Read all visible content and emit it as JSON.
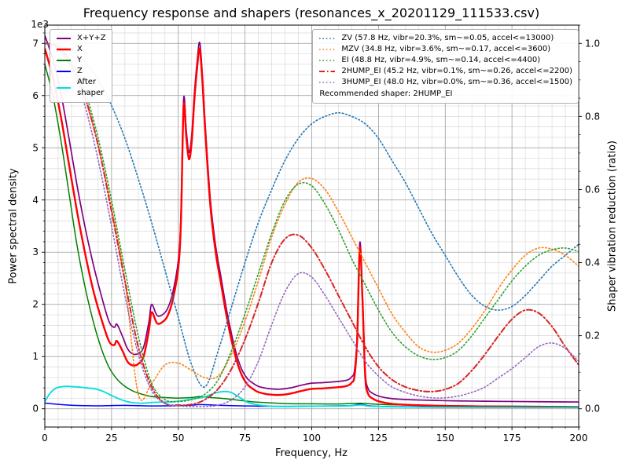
{
  "chart_data": {
    "type": "line",
    "title": "Frequency response and shapers (resonances_x_20201129_111533.csv)",
    "xlabel": "Frequency, Hz",
    "ylabel": "Power spectral density",
    "y2label": "Shaper vibration reduction (ratio)",
    "y_offset_text": "1e3",
    "grid": "both",
    "xlim": [
      0,
      200
    ],
    "ylim": [
      0,
      7000
    ],
    "y2lim": [
      0,
      1
    ],
    "x_ticks": [
      "0",
      "25",
      "50",
      "75",
      "100",
      "125",
      "150",
      "175",
      "200"
    ],
    "y_ticks": [
      "0",
      "1",
      "2",
      "3",
      "4",
      "5",
      "6",
      "7"
    ],
    "y2_ticks": [
      "0.0",
      "0.2",
      "0.4",
      "0.6",
      "0.8",
      "1.0"
    ],
    "grid_major_color": "#9b9b9b",
    "grid_minor_color": "#d9d9d9",
    "legend_left": {
      "items": [
        {
          "label": "X+Y+Z",
          "color": "#800080",
          "style": "solid",
          "width": 2
        },
        {
          "label": "X",
          "color": "#ff0000",
          "style": "solid",
          "width": 2.4
        },
        {
          "label": "Y",
          "color": "#008000",
          "style": "solid",
          "width": 2
        },
        {
          "label": "Z",
          "color": "#0000ff",
          "style": "solid",
          "width": 2
        },
        {
          "label": "After\nshaper",
          "color": "#00dede",
          "style": "solid",
          "width": 2
        }
      ]
    },
    "legend_right": {
      "items": [
        {
          "label": "ZV (57.8 Hz, vibr=20.3%, sm~=0.05, accel<=13000)",
          "color": "#1f77b4",
          "style": "dotted",
          "width": 1.6
        },
        {
          "label": "MZV (34.8 Hz, vibr=3.6%, sm~=0.17, accel<=3600)",
          "color": "#ff7f0e",
          "style": "dotted",
          "width": 1.6
        },
        {
          "label": "EI (48.8 Hz, vibr=4.9%, sm~=0.14, accel<=4400)",
          "color": "#2ca02c",
          "style": "dotted",
          "width": 1.6
        },
        {
          "label": "2HUMP_EI (45.2 Hz, vibr=0.1%, sm~=0.26, accel<=2200)",
          "color": "#d62728",
          "style": "dashdot",
          "width": 2
        },
        {
          "label": "3HUMP_EI (48.0 Hz, vibr=0.0%, sm~=0.36, accel<=1500)",
          "color": "#9467bd",
          "style": "dotted",
          "width": 1.6
        }
      ],
      "footer": "Recommended shaper: 2HUMP_EI"
    },
    "series": [
      {
        "name": "psd-xyz",
        "axis": "left",
        "color": "#800080",
        "style": "solid",
        "width": 1.7,
        "x": [
          0,
          3,
          6,
          9,
          12,
          15,
          18,
          21,
          24,
          26,
          27,
          29,
          31,
          33,
          35,
          37,
          39,
          40,
          42,
          44,
          46,
          48,
          50,
          51,
          52,
          53,
          54,
          55,
          56,
          57,
          58,
          59,
          60,
          62,
          64,
          66,
          68,
          70,
          72,
          74,
          76,
          78,
          80,
          84,
          88,
          92,
          96,
          100,
          104,
          108,
          112,
          114,
          115,
          116,
          117,
          118,
          119,
          120,
          121,
          123,
          126,
          130,
          135,
          140,
          150,
          160,
          170,
          180,
          190,
          200
        ],
        "y": [
          7150,
          6700,
          6050,
          5200,
          4300,
          3500,
          2800,
          2200,
          1680,
          1560,
          1620,
          1400,
          1150,
          1050,
          1060,
          1180,
          1670,
          2000,
          1790,
          1800,
          1920,
          2240,
          2840,
          3730,
          5930,
          5330,
          4910,
          5230,
          6020,
          6620,
          7020,
          6420,
          5520,
          4020,
          3120,
          2520,
          1920,
          1420,
          1010,
          730,
          570,
          490,
          430,
          385,
          375,
          400,
          450,
          490,
          500,
          515,
          535,
          565,
          615,
          730,
          1400,
          3180,
          2200,
          750,
          400,
          290,
          230,
          195,
          178,
          168,
          155,
          147,
          142,
          138,
          133,
          130
        ]
      },
      {
        "name": "psd-y",
        "axis": "left",
        "color": "#008000",
        "style": "solid",
        "width": 1.5,
        "x": [
          0,
          3,
          6,
          9,
          12,
          15,
          18,
          21,
          24,
          27,
          30,
          33,
          36,
          40,
          45,
          50,
          55,
          58,
          62,
          66,
          70,
          75,
          80,
          90,
          100,
          110,
          118,
          125,
          135,
          150,
          165,
          180,
          200
        ],
        "y": [
          6600,
          6000,
          5150,
          4150,
          3150,
          2350,
          1700,
          1180,
          800,
          570,
          430,
          340,
          285,
          235,
          215,
          205,
          215,
          235,
          215,
          200,
          180,
          150,
          125,
          100,
          95,
          92,
          105,
          85,
          72,
          58,
          52,
          48,
          42
        ]
      },
      {
        "name": "psd-z",
        "axis": "left",
        "color": "#0000ff",
        "style": "solid",
        "width": 1.5,
        "x": [
          0,
          5,
          10,
          15,
          20,
          25,
          30,
          35,
          40,
          45,
          50,
          55,
          58,
          62,
          66,
          70,
          75,
          80,
          90,
          100,
          110,
          115,
          118,
          121,
          125,
          130,
          140,
          150,
          160,
          170,
          180,
          190,
          200
        ],
        "y": [
          110,
          85,
          68,
          60,
          56,
          62,
          66,
          60,
          55,
          56,
          60,
          70,
          80,
          74,
          66,
          60,
          55,
          50,
          46,
          50,
          56,
          62,
          88,
          60,
          46,
          41,
          38,
          35,
          33,
          32,
          30,
          28,
          27
        ]
      },
      {
        "name": "psd-x",
        "axis": "left",
        "color": "#ff0000",
        "style": "solid",
        "width": 2.4,
        "x": [
          0,
          3,
          6,
          9,
          12,
          15,
          18,
          21,
          24,
          26,
          27,
          29,
          31,
          33,
          35,
          37,
          39,
          40,
          42,
          44,
          46,
          48,
          50,
          51,
          52,
          53,
          54,
          55,
          56,
          57,
          58,
          59,
          60,
          62,
          64,
          66,
          68,
          70,
          72,
          74,
          76,
          78,
          80,
          84,
          88,
          92,
          96,
          100,
          104,
          108,
          112,
          114,
          115,
          116,
          117,
          118,
          119,
          120,
          121,
          123,
          126,
          130,
          135,
          140,
          150,
          160,
          170,
          180,
          190,
          200
        ],
        "y": [
          6900,
          6350,
          5600,
          4700,
          3800,
          3000,
          2300,
          1750,
          1300,
          1220,
          1300,
          1120,
          900,
          830,
          860,
          1000,
          1500,
          1850,
          1640,
          1660,
          1780,
          2100,
          2700,
          3600,
          5800,
          5200,
          4780,
          5100,
          5900,
          6500,
          6900,
          6300,
          5400,
          3900,
          3000,
          2400,
          1800,
          1300,
          900,
          620,
          460,
          380,
          320,
          275,
          265,
          290,
          340,
          380,
          390,
          405,
          425,
          455,
          505,
          620,
          1300,
          3080,
          2100,
          650,
          300,
          190,
          130,
          95,
          78,
          68,
          55,
          47,
          42,
          38,
          33,
          30
        ]
      },
      {
        "name": "psd-after-shaper",
        "axis": "left",
        "color": "#00dede",
        "style": "solid",
        "width": 1.8,
        "x": [
          0,
          2,
          4,
          6,
          8,
          10,
          13,
          16,
          19,
          22,
          25,
          28,
          31,
          34,
          37,
          40,
          43,
          46,
          49,
          52,
          55,
          58,
          60,
          62,
          64,
          66,
          68,
          70,
          72,
          74,
          76,
          79,
          82,
          86,
          90,
          95,
          100,
          105,
          110,
          114,
          117,
          119,
          121,
          124,
          128,
          133,
          140,
          150,
          160,
          170,
          180,
          190,
          200
        ],
        "y": [
          140,
          300,
          390,
          420,
          430,
          425,
          415,
          398,
          380,
          330,
          255,
          185,
          135,
          110,
          108,
          120,
          126,
          130,
          138,
          160,
          188,
          208,
          230,
          270,
          305,
          325,
          330,
          308,
          248,
          185,
          122,
          82,
          60,
          46,
          42,
          45,
          50,
          52,
          52,
          57,
          70,
          72,
          52,
          45,
          40,
          36,
          32,
          28,
          27,
          26,
          25,
          24,
          33
        ]
      },
      {
        "name": "shaper-zv",
        "axis": "right",
        "color": "#1f77b4",
        "style": "dotted",
        "width": 1.6,
        "x": [
          0,
          5,
          10,
          15,
          20,
          25,
          30,
          35,
          40,
          45,
          50,
          55,
          60,
          65,
          70,
          75,
          80,
          85,
          90,
          95,
          100,
          105,
          110,
          115,
          120,
          125,
          130,
          135,
          140,
          145,
          150,
          155,
          160,
          165,
          170,
          175,
          180,
          185,
          190,
          195,
          200
        ],
        "y": [
          1.0,
          0.995,
          0.98,
          0.95,
          0.9,
          0.83,
          0.74,
          0.63,
          0.51,
          0.38,
          0.25,
          0.12,
          0.06,
          0.16,
          0.28,
          0.4,
          0.51,
          0.6,
          0.68,
          0.74,
          0.78,
          0.8,
          0.81,
          0.8,
          0.78,
          0.74,
          0.68,
          0.62,
          0.55,
          0.48,
          0.42,
          0.36,
          0.31,
          0.28,
          0.27,
          0.28,
          0.31,
          0.35,
          0.39,
          0.42,
          0.45
        ]
      },
      {
        "name": "shaper-mzv",
        "axis": "right",
        "color": "#ff7f0e",
        "style": "dotted",
        "width": 1.6,
        "x": [
          0,
          5,
          10,
          15,
          20,
          25,
          30,
          35,
          40,
          45,
          50,
          55,
          60,
          65,
          70,
          75,
          80,
          85,
          90,
          95,
          100,
          105,
          110,
          115,
          120,
          125,
          130,
          135,
          140,
          145,
          150,
          155,
          160,
          165,
          170,
          175,
          180,
          185,
          190,
          195,
          200
        ],
        "y": [
          1.0,
          0.99,
          0.94,
          0.85,
          0.72,
          0.55,
          0.35,
          0.04,
          0.07,
          0.12,
          0.125,
          0.105,
          0.085,
          0.09,
          0.15,
          0.24,
          0.35,
          0.47,
          0.56,
          0.62,
          0.63,
          0.6,
          0.54,
          0.47,
          0.4,
          0.33,
          0.26,
          0.21,
          0.17,
          0.155,
          0.16,
          0.18,
          0.22,
          0.27,
          0.33,
          0.38,
          0.42,
          0.44,
          0.437,
          0.42,
          0.39
        ]
      },
      {
        "name": "shaper-ei",
        "axis": "right",
        "color": "#2ca02c",
        "style": "dotted",
        "width": 1.6,
        "x": [
          0,
          5,
          10,
          15,
          20,
          25,
          30,
          35,
          40,
          45,
          50,
          55,
          60,
          65,
          70,
          75,
          80,
          85,
          90,
          95,
          100,
          105,
          110,
          115,
          120,
          125,
          130,
          135,
          140,
          145,
          150,
          155,
          160,
          165,
          170,
          175,
          180,
          185,
          190,
          195,
          200
        ],
        "y": [
          1.0,
          0.99,
          0.95,
          0.87,
          0.74,
          0.57,
          0.38,
          0.2,
          0.07,
          0.025,
          0.02,
          0.025,
          0.04,
          0.08,
          0.16,
          0.26,
          0.37,
          0.48,
          0.57,
          0.615,
          0.61,
          0.56,
          0.49,
          0.41,
          0.34,
          0.27,
          0.21,
          0.17,
          0.145,
          0.135,
          0.14,
          0.16,
          0.2,
          0.25,
          0.3,
          0.35,
          0.39,
          0.42,
          0.435,
          0.44,
          0.43
        ]
      },
      {
        "name": "shaper-2hump-ei",
        "axis": "right",
        "color": "#d62728",
        "style": "dashdot",
        "width": 2,
        "x": [
          0,
          5,
          10,
          15,
          20,
          25,
          30,
          35,
          40,
          45,
          50,
          55,
          60,
          65,
          70,
          75,
          80,
          85,
          90,
          95,
          100,
          105,
          110,
          115,
          120,
          125,
          130,
          135,
          140,
          145,
          150,
          155,
          160,
          165,
          170,
          175,
          180,
          185,
          190,
          195,
          200
        ],
        "y": [
          1.0,
          0.99,
          0.94,
          0.855,
          0.72,
          0.54,
          0.35,
          0.17,
          0.06,
          0.015,
          0.01,
          0.012,
          0.025,
          0.055,
          0.11,
          0.19,
          0.29,
          0.4,
          0.465,
          0.475,
          0.44,
          0.38,
          0.31,
          0.24,
          0.17,
          0.115,
          0.08,
          0.06,
          0.05,
          0.047,
          0.053,
          0.07,
          0.105,
          0.15,
          0.2,
          0.245,
          0.27,
          0.262,
          0.225,
          0.17,
          0.12
        ]
      },
      {
        "name": "shaper-3hump-ei",
        "axis": "right",
        "color": "#9467bd",
        "style": "dotted",
        "width": 1.6,
        "x": [
          0,
          5,
          10,
          15,
          20,
          25,
          30,
          35,
          40,
          45,
          50,
          55,
          60,
          65,
          70,
          75,
          80,
          85,
          90,
          95,
          100,
          105,
          110,
          115,
          120,
          125,
          130,
          135,
          140,
          145,
          150,
          155,
          160,
          165,
          170,
          175,
          180,
          185,
          190,
          195,
          200
        ],
        "y": [
          1.0,
          0.985,
          0.93,
          0.83,
          0.68,
          0.5,
          0.31,
          0.15,
          0.05,
          0.015,
          0.008,
          0.006,
          0.006,
          0.01,
          0.025,
          0.06,
          0.13,
          0.23,
          0.32,
          0.37,
          0.36,
          0.31,
          0.25,
          0.19,
          0.13,
          0.09,
          0.06,
          0.045,
          0.035,
          0.03,
          0.03,
          0.035,
          0.045,
          0.06,
          0.085,
          0.11,
          0.14,
          0.17,
          0.18,
          0.165,
          0.13
        ]
      }
    ]
  }
}
